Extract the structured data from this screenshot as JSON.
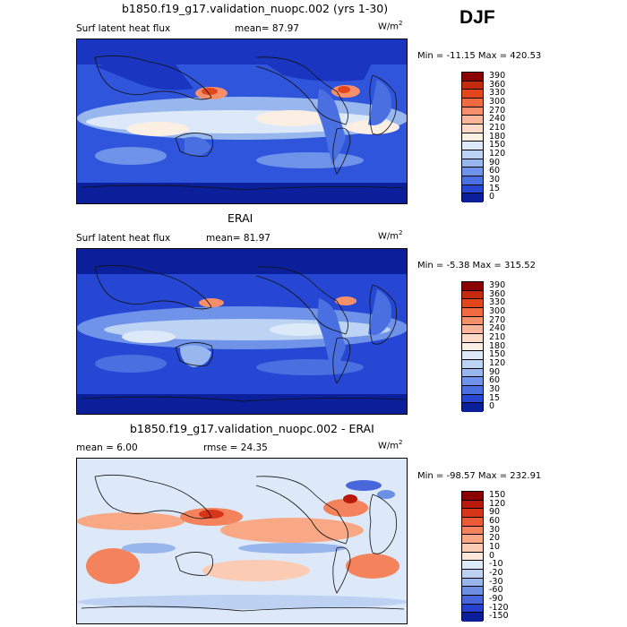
{
  "season": "DJF",
  "unit_label": "W/m",
  "unit_exp": "2",
  "panels": [
    {
      "title": "b1850.f19_g17.validation_nuopc.002 (yrs 1-30)",
      "left_label": "Surf latent heat flux",
      "mean_text": "mean=  87.97",
      "minmax": "Min = -11.15 Max = 420.53"
    },
    {
      "title": "ERAI",
      "left_label": "Surf latent heat flux",
      "mean_text": "mean=  81.97",
      "minmax": "Min =  -5.38 Max = 315.52"
    },
    {
      "title": "b1850.f19_g17.validation_nuopc.002 - ERAI",
      "left_label": "mean =    6.00",
      "mean_text": "rmse =   24.35",
      "minmax": "Min = -98.57 Max = 232.91"
    }
  ],
  "chart_data": [
    {
      "type": "heatmap",
      "title": "b1850.f19_g17.validation_nuopc.002 (yrs 1-30)",
      "variable": "Surf latent heat flux",
      "mean": 87.97,
      "min": -11.15,
      "max": 420.53,
      "units": "W/m^2",
      "colorbar_levels": [
        "390",
        "360",
        "330",
        "300",
        "270",
        "240",
        "210",
        "180",
        "150",
        "120",
        "90",
        "60",
        "30",
        "15",
        "0"
      ],
      "colorbar_colors": [
        "#8b0000",
        "#c42a0d",
        "#e2461c",
        "#f26a3f",
        "#f7906a",
        "#fbb59a",
        "#fdd9c8",
        "#fbeee2",
        "#dde9f8",
        "#bcd3f3",
        "#97b7ee",
        "#6f93e8",
        "#4a6fe0",
        "#2547d4",
        "#0b1f9a"
      ]
    },
    {
      "type": "heatmap",
      "title": "ERAI",
      "variable": "Surf latent heat flux",
      "mean": 81.97,
      "min": -5.38,
      "max": 315.52,
      "units": "W/m^2",
      "colorbar_levels": [
        "390",
        "360",
        "330",
        "300",
        "270",
        "240",
        "210",
        "180",
        "150",
        "120",
        "90",
        "60",
        "30",
        "15",
        "0"
      ],
      "colorbar_colors": [
        "#8b0000",
        "#c42a0d",
        "#e2461c",
        "#f26a3f",
        "#f7906a",
        "#fbb59a",
        "#fdd9c8",
        "#fbeee2",
        "#dde9f8",
        "#bcd3f3",
        "#97b7ee",
        "#6f93e8",
        "#4a6fe0",
        "#2547d4",
        "#0b1f9a"
      ]
    },
    {
      "type": "heatmap",
      "title": "b1850.f19_g17.validation_nuopc.002 - ERAI",
      "mean": 6.0,
      "rmse": 24.35,
      "min": -98.57,
      "max": 232.91,
      "units": "W/m^2",
      "colorbar_levels": [
        "150",
        "120",
        "90",
        "60",
        "30",
        "20",
        "10",
        "0",
        "-10",
        "-20",
        "-30",
        "-60",
        "-90",
        "-120",
        "-150"
      ],
      "colorbar_colors": [
        "#8b0000",
        "#b8190a",
        "#d6351a",
        "#ea5a34",
        "#f4825c",
        "#f9a886",
        "#fccbb3",
        "#fbe7dc",
        "#dde9f8",
        "#bdd2f2",
        "#98b5ec",
        "#6c8fe4",
        "#4767db",
        "#2640cf",
        "#0b1f9a"
      ]
    }
  ]
}
